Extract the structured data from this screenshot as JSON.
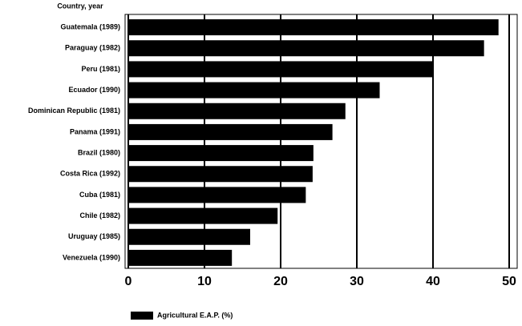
{
  "chart_data": {
    "type": "bar",
    "orientation": "horizontal",
    "y_axis_label": "Country, year",
    "categories": [
      "Guatemala (1989)",
      "Paraguay (1982)",
      "Peru (1981)",
      "Ecuador (1990)",
      "Dominican Republic (1981)",
      "Panama (1991)",
      "Brazil (1980)",
      "Costa Rica (1992)",
      "Cuba (1981)",
      "Chile (1982)",
      "Uruguay (1985)",
      "Venezuela (1990)"
    ],
    "series": [
      {
        "name": "Agricultural E.A.P. (%)",
        "color": "#000000",
        "values": [
          48.6,
          46.7,
          40,
          33,
          28.5,
          26.8,
          24.3,
          24.2,
          23.3,
          19.6,
          16,
          13.6
        ]
      }
    ],
    "xlim": [
      0,
      50
    ],
    "xticks": [
      0,
      10,
      20,
      30,
      40,
      50
    ],
    "grid": true,
    "legend": "bottom-left"
  }
}
